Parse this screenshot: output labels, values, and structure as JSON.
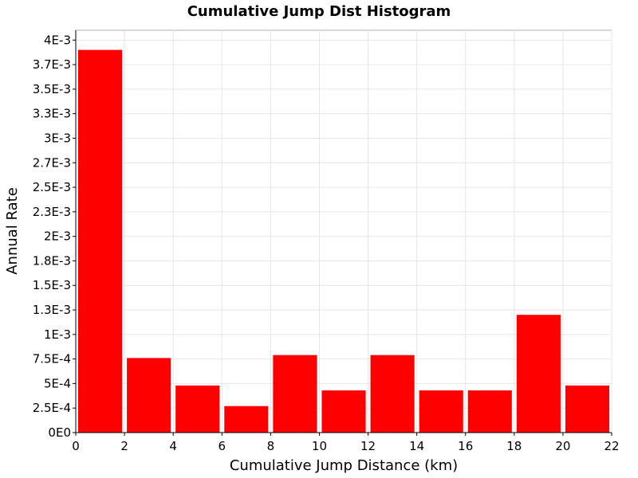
{
  "chart_data": {
    "type": "bar",
    "title": "Cumulative Jump Dist Histogram",
    "xlabel": "Cumulative Jump Distance (km)",
    "ylabel": "Annual Rate",
    "xlim": [
      0,
      22
    ],
    "ylim": [
      0,
      0.0041
    ],
    "grid": true,
    "bin_width": 2,
    "bar_color": "#ff0000",
    "bins": [
      {
        "x_start": 0,
        "x_end": 2,
        "value": 0.0039
      },
      {
        "x_start": 2,
        "x_end": 4,
        "value": 0.00076
      },
      {
        "x_start": 4,
        "x_end": 6,
        "value": 0.00048
      },
      {
        "x_start": 6,
        "x_end": 8,
        "value": 0.00027
      },
      {
        "x_start": 8,
        "x_end": 10,
        "value": 0.00079
      },
      {
        "x_start": 10,
        "x_end": 12,
        "value": 0.00043
      },
      {
        "x_start": 12,
        "x_end": 14,
        "value": 0.00079
      },
      {
        "x_start": 14,
        "x_end": 16,
        "value": 0.00043
      },
      {
        "x_start": 16,
        "x_end": 18,
        "value": 0.00043
      },
      {
        "x_start": 18,
        "x_end": 20,
        "value": 0.0012
      },
      {
        "x_start": 20,
        "x_end": 22,
        "value": 0.00048
      }
    ],
    "x_ticks": [
      {
        "value": 0,
        "label": "0"
      },
      {
        "value": 2,
        "label": "2"
      },
      {
        "value": 4,
        "label": "4"
      },
      {
        "value": 6,
        "label": "6"
      },
      {
        "value": 8,
        "label": "8"
      },
      {
        "value": 10,
        "label": "10"
      },
      {
        "value": 12,
        "label": "12"
      },
      {
        "value": 14,
        "label": "14"
      },
      {
        "value": 16,
        "label": "16"
      },
      {
        "value": 18,
        "label": "18"
      },
      {
        "value": 20,
        "label": "20"
      },
      {
        "value": 22,
        "label": "22"
      }
    ],
    "y_ticks": [
      {
        "value": 0,
        "label": "0E0"
      },
      {
        "value": 0.00025,
        "label": "2.5E-4"
      },
      {
        "value": 0.0005,
        "label": "5E-4"
      },
      {
        "value": 0.00075,
        "label": "7.5E-4"
      },
      {
        "value": 0.001,
        "label": "1E-3"
      },
      {
        "value": 0.00125,
        "label": "1.3E-3"
      },
      {
        "value": 0.0015,
        "label": "1.5E-3"
      },
      {
        "value": 0.00175,
        "label": "1.8E-3"
      },
      {
        "value": 0.002,
        "label": "2E-3"
      },
      {
        "value": 0.00225,
        "label": "2.3E-3"
      },
      {
        "value": 0.0025,
        "label": "2.5E-3"
      },
      {
        "value": 0.00275,
        "label": "2.7E-3"
      },
      {
        "value": 0.003,
        "label": "3E-3"
      },
      {
        "value": 0.00325,
        "label": "3.3E-3"
      },
      {
        "value": 0.0035,
        "label": "3.5E-3"
      },
      {
        "value": 0.00375,
        "label": "3.7E-3"
      },
      {
        "value": 0.004,
        "label": "4E-3"
      }
    ]
  }
}
